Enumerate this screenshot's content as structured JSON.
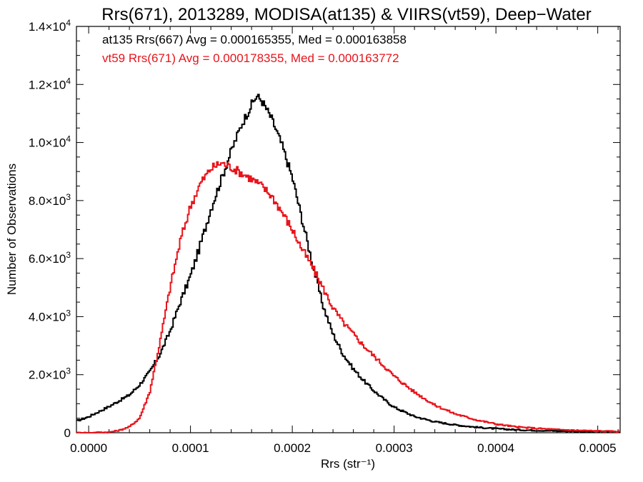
{
  "chart_data": {
    "type": "line",
    "title": "Rrs(671), 2013289, MODISA(at135) & VIIRS(vt59), Deep−Water",
    "xlabel": "Rrs (str⁻¹)",
    "ylabel": "Number of Observations",
    "xlim": [
      -1.2e-05,
      0.000522
    ],
    "ylim": [
      0,
      14000
    ],
    "x_ticks": [
      {
        "value": 0.0,
        "label": "0.0000"
      },
      {
        "value": 0.0001,
        "label": "0.0001"
      },
      {
        "value": 0.0002,
        "label": "0.0002"
      },
      {
        "value": 0.0003,
        "label": "0.0003"
      },
      {
        "value": 0.0004,
        "label": "0.0004"
      },
      {
        "value": 0.0005,
        "label": "0.0005"
      }
    ],
    "y_ticks": [
      {
        "value": 0,
        "mantissa": "0",
        "exp": ""
      },
      {
        "value": 2000,
        "mantissa": "2.0×10",
        "exp": "3"
      },
      {
        "value": 4000,
        "mantissa": "4.0×10",
        "exp": "3"
      },
      {
        "value": 6000,
        "mantissa": "6.0×10",
        "exp": "3"
      },
      {
        "value": 8000,
        "mantissa": "8.0×10",
        "exp": "3"
      },
      {
        "value": 10000,
        "mantissa": "1.0×10",
        "exp": "4"
      },
      {
        "value": 12000,
        "mantissa": "1.2×10",
        "exp": "4"
      },
      {
        "value": 14000,
        "mantissa": "1.4×10",
        "exp": "4"
      }
    ],
    "annotations": [
      {
        "text": "at135 Rrs(667) Avg = 0.000165355, Med = 0.000163858",
        "color": "#000000"
      },
      {
        "text": "vt59 Rrs(671) Avg = 0.000178355, Med = 0.000163772",
        "color": "#e8141b"
      }
    ],
    "series": [
      {
        "color": "#000000",
        "step": true,
        "x": [
          -1.2e-05,
          0.0,
          2e-05,
          4e-05,
          5e-05,
          6e-05,
          7e-05,
          8e-05,
          9e-05,
          0.0001,
          0.00011,
          0.00012,
          0.00013,
          0.00014,
          0.00015,
          0.00016,
          0.000165,
          0.00017,
          0.00018,
          0.00019,
          0.0002,
          0.00021,
          0.00022,
          0.00023,
          0.00024,
          0.00025,
          0.00026,
          0.00027,
          0.00028,
          0.00029,
          0.0003,
          0.00032,
          0.00034,
          0.00036,
          0.00038,
          0.0004,
          0.00042,
          0.00044,
          0.00046,
          0.00048,
          0.0005,
          0.000522
        ],
        "y": [
          400,
          550,
          900,
          1300,
          1650,
          2100,
          2700,
          3500,
          4500,
          5400,
          6500,
          7700,
          8700,
          9700,
          10600,
          11300,
          11600,
          11450,
          10800,
          9900,
          8800,
          7300,
          5800,
          4400,
          3400,
          2700,
          2200,
          1800,
          1450,
          1150,
          880,
          560,
          380,
          270,
          190,
          140,
          100,
          80,
          60,
          50,
          40,
          30
        ]
      },
      {
        "color": "#e8141b",
        "step": true,
        "x": [
          -1.2e-05,
          0.0,
          2e-05,
          3e-05,
          4e-05,
          5e-05,
          6e-05,
          7e-05,
          8e-05,
          9e-05,
          0.0001,
          0.00011,
          0.00012,
          0.00013,
          0.00014,
          0.00015,
          0.00016,
          0.00017,
          0.00018,
          0.00019,
          0.0002,
          0.00021,
          0.00022,
          0.00023,
          0.00024,
          0.00025,
          0.00026,
          0.00027,
          0.00028,
          0.00029,
          0.0003,
          0.00032,
          0.00034,
          0.00036,
          0.00038,
          0.0004,
          0.00042,
          0.00044,
          0.00046,
          0.00048,
          0.0005,
          0.000522
        ],
        "y": [
          0,
          0,
          20,
          80,
          200,
          500,
          1400,
          3100,
          5000,
          6600,
          7800,
          8600,
          9100,
          9300,
          9150,
          8950,
          8750,
          8500,
          8150,
          7600,
          7000,
          6300,
          5700,
          5000,
          4300,
          3800,
          3400,
          3000,
          2650,
          2300,
          1950,
          1400,
          950,
          650,
          450,
          300,
          200,
          150,
          110,
          80,
          60,
          40
        ]
      }
    ]
  }
}
